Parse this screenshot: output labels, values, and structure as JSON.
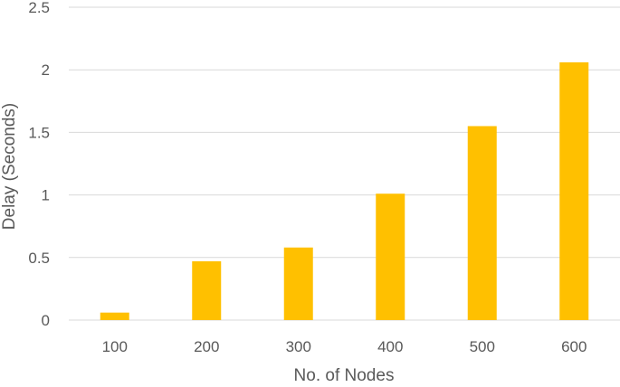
{
  "chart_data": {
    "type": "bar",
    "categories": [
      "100",
      "200",
      "300",
      "400",
      "500",
      "600"
    ],
    "values": [
      0.06,
      0.47,
      0.58,
      1.01,
      1.55,
      2.06
    ],
    "xlabel": "No. of Nodes",
    "ylabel": "Delay (Seconds)",
    "ylim": [
      0,
      2.5
    ],
    "yticks": [
      "0",
      "0.5",
      "1",
      "1.5",
      "2",
      "2.5"
    ],
    "ytick_values": [
      0,
      0.5,
      1,
      1.5,
      2,
      2.5
    ],
    "grid": true,
    "legend": "none",
    "colors": {
      "bar": "#FFC000",
      "grid": "#D9D9D9",
      "text": "#595959"
    }
  }
}
